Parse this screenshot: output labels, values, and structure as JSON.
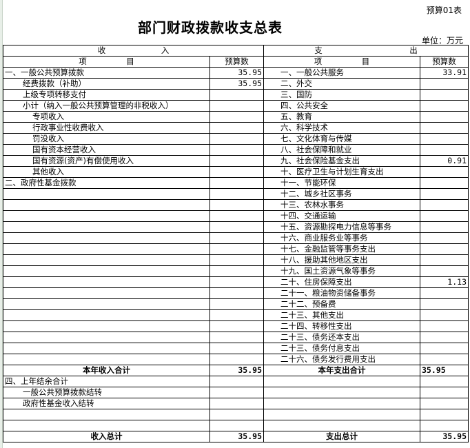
{
  "sheet_no": "预算01表",
  "title": "部门财政拨款收支总表",
  "unit": "单位：万元",
  "header": {
    "income": "收　　　　　　　入",
    "expense": "支　　　　　　　　　　　出",
    "item": "项　　　　　目",
    "budget": "预算数"
  },
  "rows": [
    {
      "left": "一、一般公共预算拨款",
      "lind": 0,
      "lval": "35.95",
      "right": "一、一般公共服务",
      "rval": "33.91"
    },
    {
      "left": "经费拨款（补助）",
      "lind": 1,
      "lval": "35.95",
      "right": "二、外交",
      "rval": ""
    },
    {
      "left": "上级专项转移支付",
      "lind": 1,
      "lval": "",
      "right": "三、国防",
      "rval": ""
    },
    {
      "left": "小计（纳入一般公共预算管理的非税收入）",
      "lind": 1,
      "lval": "",
      "right": "四、公共安全",
      "rval": ""
    },
    {
      "left": "专项收入",
      "lind": 2,
      "lval": "",
      "right": "五、教育",
      "rval": ""
    },
    {
      "left": "行政事业性收费收入",
      "lind": 2,
      "lval": "",
      "right": "六、科学技术",
      "rval": ""
    },
    {
      "left": "罚没收入",
      "lind": 2,
      "lval": "",
      "right": "七、文化体育与传媒",
      "rval": ""
    },
    {
      "left": "国有资本经营收入",
      "lind": 2,
      "lval": "",
      "right": "八、社会保障和就业",
      "rval": ""
    },
    {
      "left": "国有资源(资产)有偿使用收入",
      "lind": 2,
      "lval": "",
      "right": "九、社会保险基金支出",
      "rval": "0.91"
    },
    {
      "left": "其他收入",
      "lind": 2,
      "lval": "",
      "right": "十、医疗卫生与计划生育支出",
      "rval": ""
    },
    {
      "left": "二、政府性基金拨款",
      "lind": 0,
      "lval": "",
      "right": "十一、节能环保",
      "rval": ""
    },
    {
      "left": "",
      "lind": 0,
      "lval": "",
      "right": "十二、城乡社区事务",
      "rval": ""
    },
    {
      "left": "",
      "lind": 0,
      "lval": "",
      "right": "十三、农林水事务",
      "rval": ""
    },
    {
      "left": "",
      "lind": 0,
      "lval": "",
      "right": "十四、交通运输",
      "rval": ""
    },
    {
      "left": "",
      "lind": 0,
      "lval": "",
      "right": "十五、资源勘探电力信息等事务",
      "rval": ""
    },
    {
      "left": "",
      "lind": 0,
      "lval": "",
      "right": "十六、商业服务业等事务",
      "rval": ""
    },
    {
      "left": "",
      "lind": 0,
      "lval": "",
      "right": "十七、金融监管等事务支出",
      "rval": ""
    },
    {
      "left": "",
      "lind": 0,
      "lval": "",
      "right": "十八、援助其他地区支出",
      "rval": ""
    },
    {
      "left": "",
      "lind": 0,
      "lval": "",
      "right": "十九、国土资源气象等事务",
      "rval": ""
    },
    {
      "left": "",
      "lind": 0,
      "lval": "",
      "right": "二十、住房保障支出",
      "rval": "1.13"
    },
    {
      "left": "",
      "lind": 0,
      "lval": "",
      "right": "二十一、粮油物资储备事务",
      "rval": ""
    },
    {
      "left": "",
      "lind": 0,
      "lval": "",
      "right": "二十二、预备费",
      "rval": ""
    },
    {
      "left": "",
      "lind": 0,
      "lval": "",
      "right": "二十三、其他支出",
      "rval": ""
    },
    {
      "left": "",
      "lind": 0,
      "lval": "",
      "right": "二十四、转移性支出",
      "rval": ""
    },
    {
      "left": "",
      "lind": 0,
      "lval": "",
      "right": "二十三、债务还本支出",
      "rval": ""
    },
    {
      "left": "",
      "lind": 0,
      "lval": "",
      "right": "二十三、债务付息支出",
      "rval": ""
    },
    {
      "left": "",
      "lind": 0,
      "lval": "",
      "right": "二十六、债务发行费用支出",
      "rval": ""
    }
  ],
  "year_total": {
    "income_label": "本年收入合计",
    "income_value": "35.95",
    "expense_label": "本年支出合计",
    "expense_value": "35.95"
  },
  "carryover_rows": [
    {
      "left": "四、上年结余合计",
      "lind": 0
    },
    {
      "left": "一般公共预算拨款结转",
      "lind": 1
    },
    {
      "left": "政府性基金收入结转",
      "lind": 1
    },
    {
      "left": "",
      "lind": 0
    },
    {
      "left": "",
      "lind": 0
    }
  ],
  "grand_total": {
    "income_label": "收入总计",
    "income_value": "35.95",
    "expense_label": "支出总计",
    "expense_value": "35.95"
  }
}
